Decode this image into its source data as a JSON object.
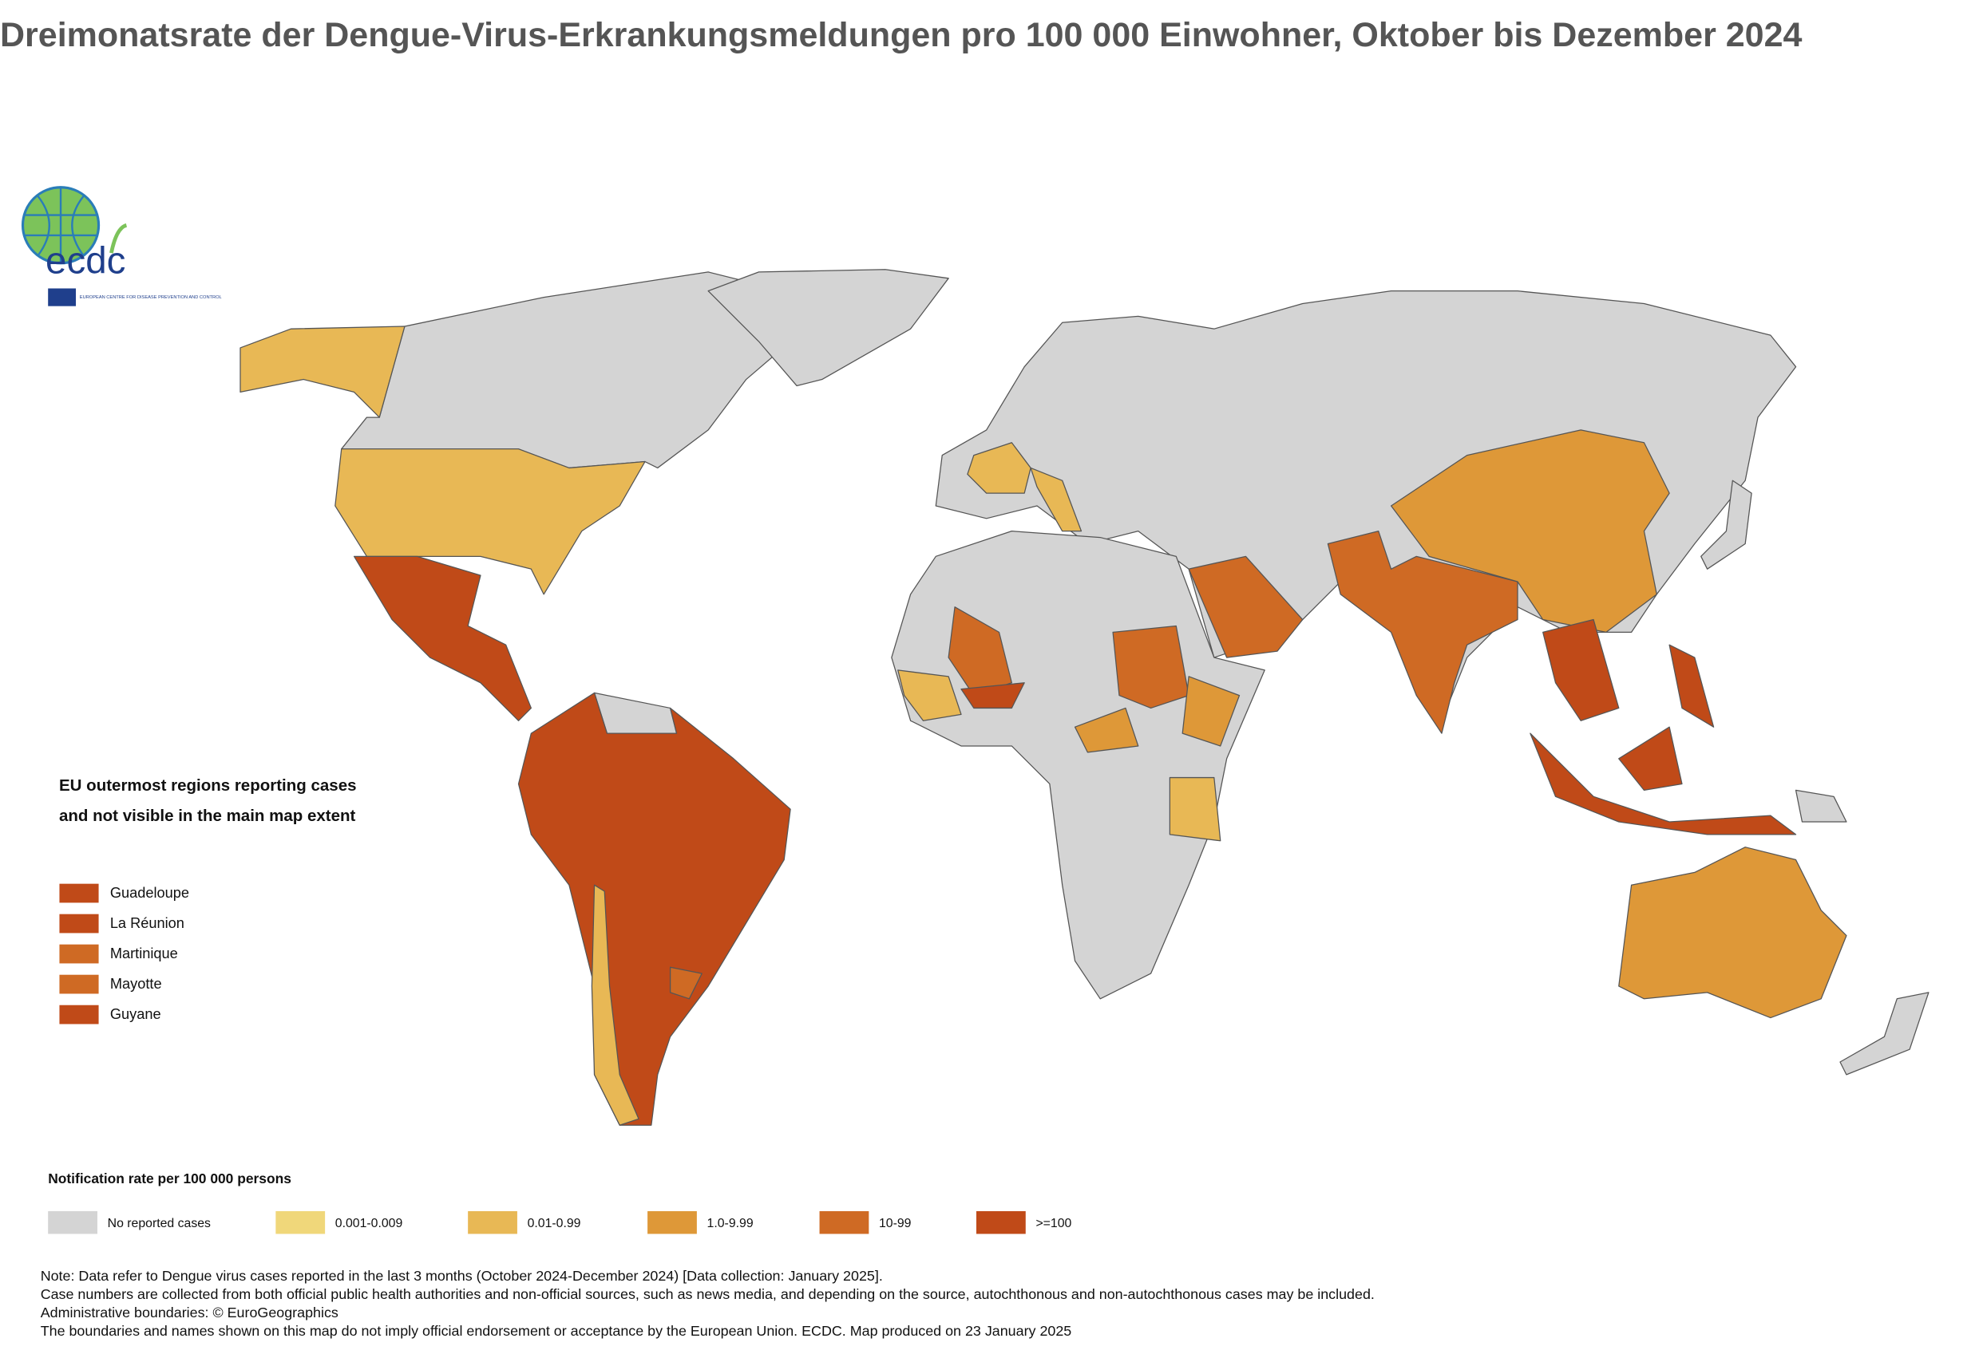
{
  "title": "Dreimonatsrate der Dengue-Virus-Erkrankungsmeldungen pro 100 000 Einwohner, Oktober bis Dezember 2024",
  "logo": {
    "name": "ecdc",
    "subtitle": "EUROPEAN CENTRE FOR DISEASE PREVENTION AND CONTROL"
  },
  "outermost_regions": {
    "title": "EU outermost regions reporting cases and not visible in the main map extent",
    "items": [
      {
        "name": "Guadeloupe",
        "color": "#c04a18"
      },
      {
        "name": "La Réunion",
        "color": "#c04a18"
      },
      {
        "name": "Martinique",
        "color": "#cf6a24"
      },
      {
        "name": "Mayotte",
        "color": "#cf6a24"
      },
      {
        "name": "Guyane",
        "color": "#c04a18"
      }
    ]
  },
  "legend": {
    "title": "Notification rate per 100 000 persons",
    "items": [
      {
        "label": "No reported cases",
        "color": "#d4d4d4"
      },
      {
        "label": "0.001-0.009",
        "color": "#f0d77a"
      },
      {
        "label": "0.01-0.99",
        "color": "#e8b855"
      },
      {
        "label": "1.0-9.99",
        "color": "#de9838"
      },
      {
        "label": "10-99",
        "color": "#cf6a24"
      },
      {
        "label": ">=100",
        "color": "#c04a18"
      }
    ]
  },
  "notes": [
    "Note: Data refer to Dengue virus cases reported in the last 3 months (October 2024-December 2024) [Data collection: January 2025].",
    "Case numbers are collected from both official public health authorities and non-official sources, such as news media, and depending on the source, autochthonous and non-autochthonous cases may be included.",
    "Administrative boundaries: © EuroGeographics",
    "The boundaries and names shown on this map do not imply official endorsement or acceptance by the European Union. ECDC. Map produced on 23 January 2025"
  ]
}
